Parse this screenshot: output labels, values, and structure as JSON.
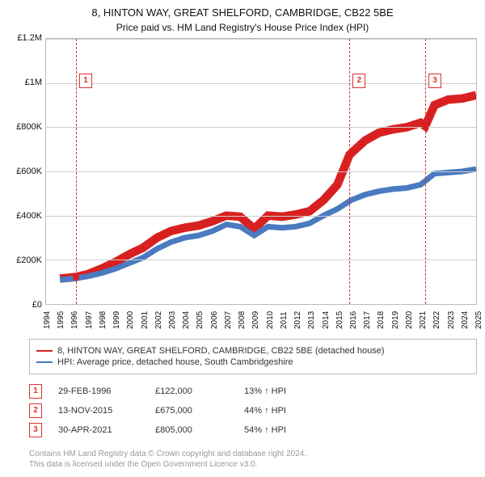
{
  "title": "8, HINTON WAY, GREAT SHELFORD, CAMBRIDGE, CB22 5BE",
  "subtitle": "Price paid vs. HM Land Registry's House Price Index (HPI)",
  "chart": {
    "type": "line",
    "xlim": [
      1994,
      2025
    ],
    "ylim": [
      0,
      1200000
    ],
    "ytick_step": 200000,
    "yticks": [
      "£0",
      "£200K",
      "£400K",
      "£600K",
      "£800K",
      "£1M",
      "£1.2M"
    ],
    "xticks": [
      1994,
      1995,
      1996,
      1997,
      1998,
      1999,
      2000,
      2001,
      2002,
      2003,
      2004,
      2005,
      2006,
      2007,
      2008,
      2009,
      2010,
      2011,
      2012,
      2013,
      2014,
      2015,
      2016,
      2017,
      2018,
      2019,
      2020,
      2021,
      2022,
      2023,
      2024,
      2025
    ],
    "background_color": "#ffffff",
    "grid_color": "#cccccc",
    "series": [
      {
        "key": "property",
        "color": "#d92020",
        "line_width": 1.5,
        "label": "8, HINTON WAY, GREAT SHELFORD, CAMBRIDGE, CB22 5BE (detached house)",
        "points": [
          [
            1995.0,
            115000
          ],
          [
            1996.16,
            122000
          ],
          [
            1997,
            135000
          ],
          [
            1998,
            160000
          ],
          [
            1999,
            190000
          ],
          [
            2000,
            225000
          ],
          [
            2001,
            255000
          ],
          [
            2002,
            300000
          ],
          [
            2003,
            330000
          ],
          [
            2004,
            345000
          ],
          [
            2005,
            355000
          ],
          [
            2006,
            375000
          ],
          [
            2007,
            400000
          ],
          [
            2008,
            395000
          ],
          [
            2009,
            340000
          ],
          [
            2010,
            400000
          ],
          [
            2011,
            395000
          ],
          [
            2012,
            405000
          ],
          [
            2013,
            420000
          ],
          [
            2014,
            470000
          ],
          [
            2015,
            540000
          ],
          [
            2015.87,
            675000
          ],
          [
            2016.3,
            700000
          ],
          [
            2017,
            740000
          ],
          [
            2018,
            775000
          ],
          [
            2019,
            790000
          ],
          [
            2020,
            800000
          ],
          [
            2021,
            820000
          ],
          [
            2021.33,
            805000
          ],
          [
            2022,
            900000
          ],
          [
            2023,
            925000
          ],
          [
            2024,
            930000
          ],
          [
            2025,
            945000
          ]
        ]
      },
      {
        "key": "hpi",
        "color": "#4a7abf",
        "line_width": 1,
        "label": "HPI: Average price, detached house, South Cambridgeshire",
        "points": [
          [
            1995.0,
            110000
          ],
          [
            1996,
            115000
          ],
          [
            1997,
            125000
          ],
          [
            1998,
            140000
          ],
          [
            1999,
            160000
          ],
          [
            2000,
            185000
          ],
          [
            2001,
            210000
          ],
          [
            2002,
            250000
          ],
          [
            2003,
            280000
          ],
          [
            2004,
            300000
          ],
          [
            2005,
            310000
          ],
          [
            2006,
            330000
          ],
          [
            2007,
            360000
          ],
          [
            2008,
            350000
          ],
          [
            2009,
            310000
          ],
          [
            2010,
            350000
          ],
          [
            2011,
            345000
          ],
          [
            2012,
            350000
          ],
          [
            2013,
            365000
          ],
          [
            2014,
            400000
          ],
          [
            2015,
            430000
          ],
          [
            2016,
            470000
          ],
          [
            2017,
            495000
          ],
          [
            2018,
            510000
          ],
          [
            2019,
            520000
          ],
          [
            2020,
            525000
          ],
          [
            2021,
            540000
          ],
          [
            2022,
            590000
          ],
          [
            2023,
            595000
          ],
          [
            2024,
            600000
          ],
          [
            2025,
            610000
          ]
        ]
      }
    ],
    "events": [
      {
        "n": "1",
        "year": 1996.16,
        "price": 122000,
        "date": "29-FEB-1996",
        "price_label": "£122,000",
        "diff": "13% ↑ HPI"
      },
      {
        "n": "2",
        "year": 2015.87,
        "price": 675000,
        "date": "13-NOV-2015",
        "price_label": "£675,000",
        "diff": "44% ↑ HPI"
      },
      {
        "n": "3",
        "year": 2021.33,
        "price": 805000,
        "date": "30-APR-2021",
        "price_label": "£805,000",
        "diff": "54% ↑ HPI"
      }
    ],
    "dot_color": "#d92020",
    "marker_box_top_pct": 13
  },
  "footer1": "Contains HM Land Registry data © Crown copyright and database right 2024.",
  "footer2": "This data is licensed under the Open Government Licence v3.0."
}
